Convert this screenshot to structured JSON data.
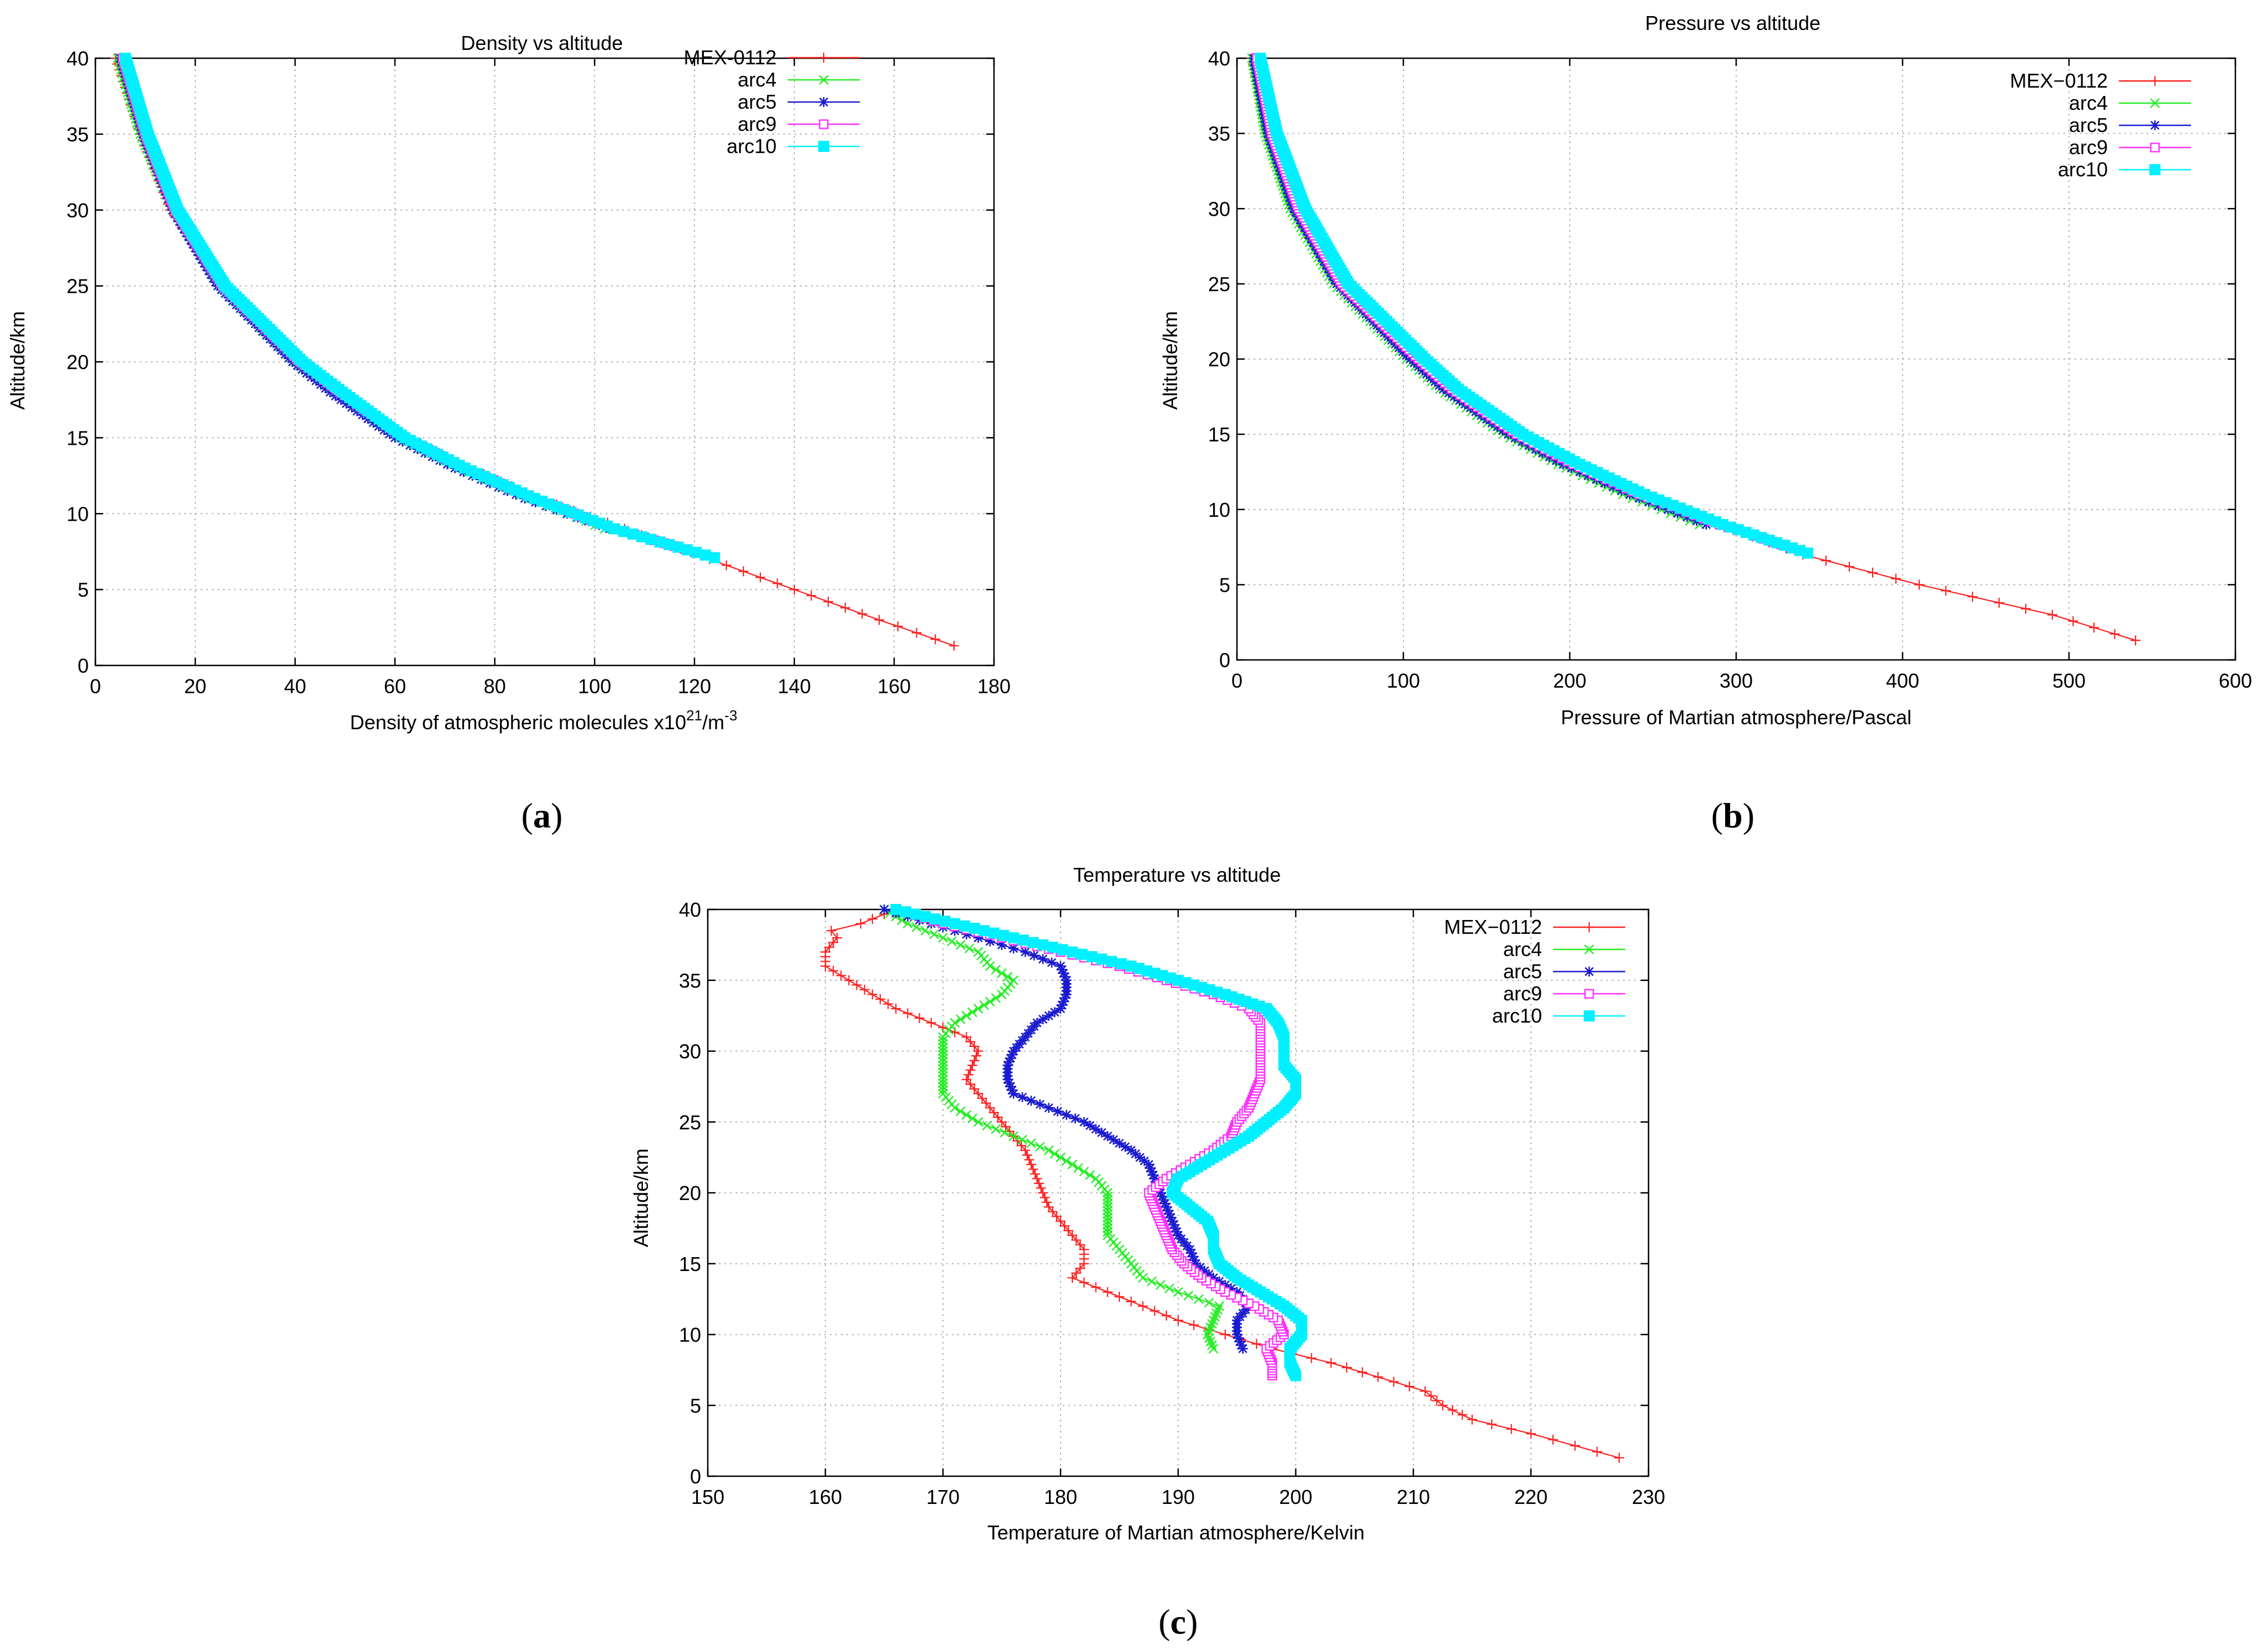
{
  "figure": {
    "panel_labels": {
      "a": [
        "(",
        "a",
        ")"
      ],
      "b": [
        "(",
        "b",
        ")"
      ],
      "c": [
        "(",
        "c",
        ")"
      ]
    }
  },
  "colors": {
    "MEX-0112": "#ff2020",
    "arc4": "#22ee22",
    "arc5": "#1a1ad0",
    "arc9": "#ff30ff",
    "arc10": "#00f0ff",
    "grid": "#b0b0b0",
    "axis": "#000000"
  },
  "legend_markers": {
    "MEX-0112": "plus",
    "arc4": "x",
    "arc5": "star",
    "arc9": "open-square",
    "arc10": "filled-square"
  },
  "chart_data": [
    {
      "id": "a",
      "type": "line",
      "title": "Density vs altitude",
      "xlabel_parts": [
        "Density of atmospheric molecules x10",
        "21",
        "/m",
        "-3"
      ],
      "ylabel": "Altitude/km",
      "xlim": [
        0,
        180
      ],
      "ylim": [
        0,
        40
      ],
      "xticks": [
        0,
        20,
        40,
        60,
        80,
        100,
        120,
        140,
        160,
        180
      ],
      "yticks": [
        0,
        5,
        10,
        15,
        20,
        25,
        30,
        35,
        40
      ],
      "grid": true,
      "legend_position": "top-right",
      "legend": [
        "MEX-0112",
        "arc4",
        "arc5",
        "arc9",
        "arc10"
      ],
      "series": [
        {
          "name": "MEX-0112",
          "marker_step": 0.4,
          "y": [
            1.3,
            3,
            5,
            7,
            9,
            11,
            13,
            15,
            18,
            20,
            25,
            30,
            35,
            40
          ],
          "x": [
            172,
            157,
            140,
            123,
            106,
            89,
            75,
            62,
            48,
            40,
            25,
            15,
            9,
            4
          ]
        },
        {
          "name": "arc4",
          "marker_step": 0.25,
          "y": [
            9,
            11,
            13,
            15,
            18,
            20,
            25,
            30,
            35,
            40
          ],
          "x": [
            102,
            87,
            73,
            61,
            48,
            40,
            25,
            15.5,
            9,
            4.5
          ]
        },
        {
          "name": "arc5",
          "marker_step": 0.25,
          "y": [
            9,
            11,
            13,
            15,
            18,
            20,
            25,
            30,
            35,
            40
          ],
          "x": [
            103,
            86,
            72,
            60,
            47,
            39.5,
            24.5,
            15.5,
            9.5,
            5
          ]
        },
        {
          "name": "arc9",
          "marker_step": 0.2,
          "y": [
            7.1,
            9,
            11,
            13,
            15,
            18,
            20,
            25,
            30,
            35,
            40
          ],
          "x": [
            124,
            104,
            88,
            74,
            62,
            49,
            41,
            25.5,
            16,
            10,
            5.5
          ]
        },
        {
          "name": "arc10",
          "marker_step": 0.18,
          "y": [
            7.1,
            9,
            11,
            13,
            15,
            18,
            20,
            25,
            30,
            35,
            40
          ],
          "x": [
            124,
            104,
            88,
            74,
            62,
            49.5,
            41.5,
            26,
            16.5,
            10.5,
            6
          ]
        }
      ]
    },
    {
      "id": "b",
      "type": "line",
      "title": "Pressure vs altitude",
      "xlabel": "Pressure of Martian atmosphere/Pascal",
      "ylabel": "Altitude/km",
      "xlim": [
        0,
        600
      ],
      "ylim": [
        0,
        40
      ],
      "xticks": [
        0,
        100,
        200,
        300,
        400,
        500,
        600
      ],
      "yticks": [
        0,
        5,
        10,
        15,
        20,
        25,
        30,
        35,
        40
      ],
      "grid": true,
      "legend_position": "top-right",
      "legend": [
        "MEX−0112",
        "arc4",
        "arc5",
        "arc9",
        "arc10"
      ],
      "series": [
        {
          "name": "MEX-0112",
          "marker_step": 0.4,
          "y": [
            1.3,
            3,
            5,
            7,
            9,
            11,
            13,
            15,
            18,
            20,
            25,
            30,
            35,
            40
          ],
          "x": [
            540,
            490,
            410,
            340,
            290,
            240,
            200,
            165,
            125,
            105,
            60,
            33,
            18,
            9
          ]
        },
        {
          "name": "arc4",
          "marker_step": 0.25,
          "y": [
            9,
            11,
            13,
            15,
            18,
            20,
            25,
            30,
            35,
            40
          ],
          "x": [
            278,
            232,
            193,
            160,
            122,
            102,
            58,
            32,
            17,
            9
          ]
        },
        {
          "name": "arc5",
          "marker_step": 0.25,
          "y": [
            9,
            11,
            13,
            15,
            18,
            20,
            25,
            30,
            35,
            40
          ],
          "x": [
            282,
            236,
            196,
            163,
            124,
            104,
            60,
            34,
            18.5,
            10
          ]
        },
        {
          "name": "arc9",
          "marker_step": 0.2,
          "y": [
            7.1,
            9,
            11,
            13,
            15,
            18,
            20,
            25,
            30,
            35,
            40
          ],
          "x": [
            343,
            290,
            242,
            202,
            168,
            129,
            109,
            63,
            37,
            21,
            12
          ]
        },
        {
          "name": "arc10",
          "marker_step": 0.18,
          "y": [
            7.1,
            9,
            11,
            13,
            15,
            18,
            20,
            25,
            30,
            35,
            40
          ],
          "x": [
            343,
            292,
            245,
            206,
            172,
            133,
            113,
            67,
            41,
            24,
            14
          ]
        }
      ]
    },
    {
      "id": "c",
      "type": "line",
      "title": "Temperature vs altitude",
      "xlabel": "Temperature of Martian atmosphere/Kelvin",
      "ylabel": "Altitude/km",
      "xlim": [
        150,
        230
      ],
      "ylim": [
        0,
        40
      ],
      "xticks": [
        150,
        160,
        170,
        180,
        190,
        200,
        210,
        220,
        230
      ],
      "yticks": [
        0,
        5,
        10,
        15,
        20,
        25,
        30,
        35,
        40
      ],
      "grid": true,
      "legend_position": "top-right",
      "legend": [
        "MEX−0112",
        "arc4",
        "arc5",
        "arc9",
        "arc10"
      ],
      "series": [
        {
          "name": "MEX-0112",
          "marker_step": 0.4,
          "y": [
            1.3,
            3,
            4,
            5,
            6,
            7,
            8,
            9,
            10,
            11,
            12,
            13,
            14,
            15,
            16,
            17,
            18,
            19,
            20,
            21,
            22,
            23,
            24,
            25,
            26,
            27,
            28,
            29,
            30,
            31,
            32,
            33,
            34,
            35,
            36,
            37,
            38,
            38.5,
            39,
            40
          ],
          "x": [
            227.5,
            220,
            215,
            212.5,
            211,
            207,
            203,
            198,
            194,
            190,
            187,
            184,
            181,
            182,
            182,
            181,
            180,
            179,
            178.5,
            178,
            177.5,
            177,
            176,
            175,
            174,
            173,
            172,
            172.5,
            173,
            172,
            169,
            166,
            164,
            162,
            160,
            160,
            161,
            160.5,
            163,
            166
          ]
        },
        {
          "name": "arc4",
          "marker_step": 0.25,
          "y": [
            9,
            10,
            11,
            12,
            13,
            14,
            15,
            16,
            17,
            18,
            19,
            20,
            21,
            22,
            23,
            24,
            25,
            26,
            27,
            28,
            29,
            30,
            31,
            32,
            33,
            34,
            35,
            36,
            37,
            38,
            39,
            40
          ],
          "x": [
            193,
            192.5,
            193,
            193.5,
            190,
            187,
            186,
            185,
            184,
            184,
            184,
            184,
            183,
            181,
            179,
            176,
            173,
            171,
            170,
            170,
            170,
            170,
            170,
            171,
            173,
            175,
            176,
            174,
            173,
            170,
            167,
            165
          ]
        },
        {
          "name": "arc5",
          "marker_step": 0.25,
          "y": [
            9,
            10,
            11,
            12,
            13,
            14,
            15,
            16,
            17,
            18,
            19,
            20,
            21,
            22,
            23,
            24,
            25,
            26,
            27,
            28,
            29,
            30,
            31,
            32,
            33,
            34,
            35,
            36,
            37,
            38,
            39,
            40
          ],
          "x": [
            195.5,
            195,
            195,
            196,
            195,
            193,
            191.5,
            191,
            190,
            189.5,
            189,
            188.5,
            188,
            187.5,
            186,
            184,
            182,
            179,
            176,
            175.5,
            175.5,
            176,
            177,
            178,
            180,
            180.5,
            180.5,
            180,
            177,
            173,
            169,
            165
          ]
        },
        {
          "name": "arc9",
          "marker_step": 0.2,
          "y": [
            7.1,
            8,
            9,
            10,
            11,
            12,
            13,
            14,
            15,
            16,
            17,
            18,
            19,
            20,
            21,
            22,
            23,
            24,
            25,
            26,
            27,
            28,
            29,
            30,
            31,
            32,
            33,
            34,
            35,
            36,
            37,
            38,
            39,
            40
          ],
          "x": [
            198,
            198,
            197.5,
            199,
            198.5,
            196.5,
            194,
            192,
            190.5,
            189.5,
            189,
            188.5,
            188,
            187.5,
            189,
            191,
            193,
            194.5,
            195,
            196,
            196.5,
            197,
            197,
            197,
            197,
            197,
            196,
            193,
            189,
            185,
            180,
            175,
            170,
            166
          ]
        },
        {
          "name": "arc10",
          "marker_step": 0.18,
          "y": [
            7.1,
            8,
            9,
            10,
            11,
            12,
            13,
            14,
            15,
            16,
            17,
            18,
            19,
            20,
            21,
            22,
            23,
            24,
            25,
            26,
            27,
            28,
            29,
            30,
            31,
            32,
            33,
            34,
            35,
            36,
            37,
            38,
            39,
            40
          ],
          "x": [
            200,
            199.5,
            199.5,
            200.5,
            200.5,
            199,
            197,
            195,
            193.5,
            193,
            193,
            192.5,
            191,
            189.5,
            190,
            192,
            194,
            196,
            197.5,
            199,
            200,
            200,
            199,
            199,
            199,
            198.5,
            197.5,
            194,
            190,
            186,
            181,
            176,
            171,
            166
          ]
        }
      ]
    }
  ]
}
